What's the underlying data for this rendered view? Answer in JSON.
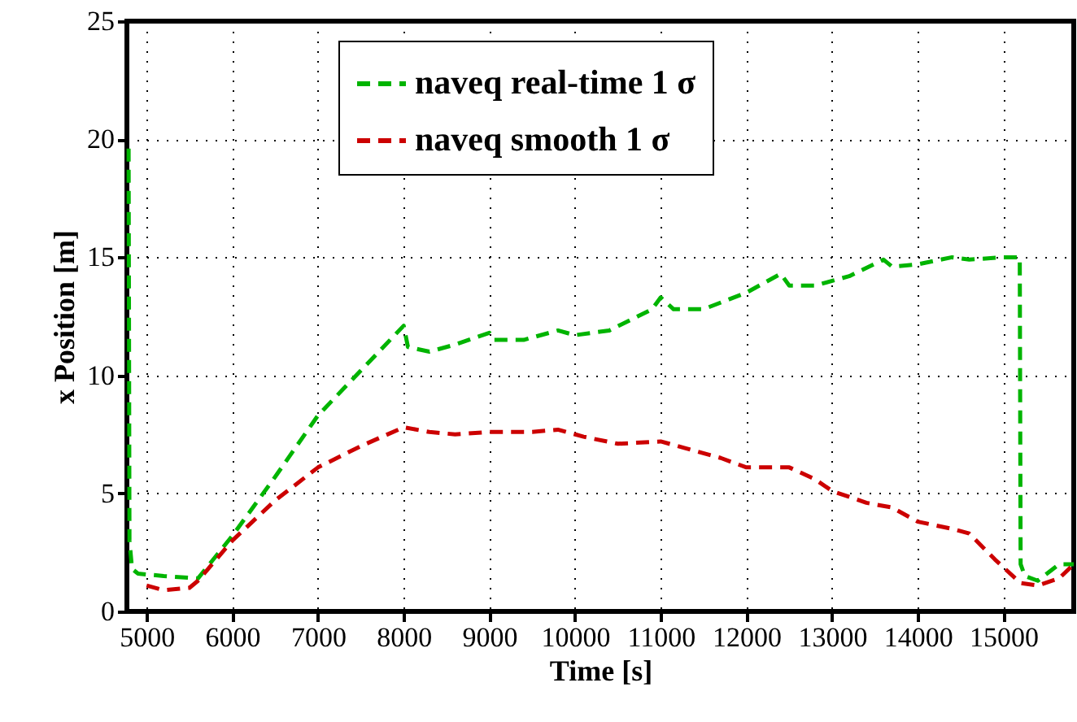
{
  "chart_data": {
    "type": "line",
    "xlabel": "Time [s]",
    "ylabel": "x Position [m]",
    "xlim": [
      4770,
      15820
    ],
    "ylim": [
      0,
      25
    ],
    "xticks": [
      5000,
      6000,
      7000,
      8000,
      9000,
      10000,
      11000,
      12000,
      13000,
      14000,
      15000
    ],
    "yticks": [
      0,
      5,
      10,
      15,
      20,
      25
    ],
    "grid": true,
    "legend": "top",
    "line_style": "dashed",
    "marker": "none",
    "series": [
      {
        "name": "naveq real-time 1 σ",
        "color": "#00b400",
        "x": [
          4790,
          4800,
          4830,
          4900,
          5200,
          5600,
          6000,
          6500,
          7000,
          7500,
          8000,
          8050,
          8300,
          8600,
          9000,
          9050,
          9400,
          9800,
          10000,
          10400,
          10900,
          11000,
          11150,
          11500,
          12000,
          12400,
          12500,
          12800,
          13200,
          13600,
          13700,
          14000,
          14400,
          14600,
          15000,
          15190,
          15200,
          15250,
          15400,
          15650,
          15820
        ],
        "values": [
          19.6,
          3,
          1.8,
          1.6,
          1.5,
          1.4,
          3.2,
          5.7,
          8.3,
          10.2,
          12.1,
          11.2,
          11.0,
          11.3,
          11.8,
          11.5,
          11.5,
          11.9,
          11.7,
          11.9,
          12.8,
          13.3,
          12.8,
          12.8,
          13.5,
          14.3,
          13.8,
          13.8,
          14.2,
          14.9,
          14.6,
          14.7,
          15.0,
          14.9,
          15.0,
          15.0,
          2.0,
          1.5,
          1.3,
          2.0,
          2.0
        ]
      },
      {
        "name": "naveq smooth 1 σ",
        "color": "#cc0000",
        "x": [
          5000,
          5200,
          5500,
          5600,
          6000,
          6500,
          7000,
          7500,
          8000,
          8300,
          8600,
          9000,
          9500,
          9800,
          10100,
          10500,
          11000,
          11300,
          11700,
          12000,
          12500,
          12800,
          13000,
          13400,
          13700,
          14000,
          14400,
          14600,
          14900,
          15200,
          15400,
          15650,
          15820
        ],
        "values": [
          1.1,
          0.9,
          1.0,
          1.3,
          3.0,
          4.7,
          6.1,
          7.0,
          7.8,
          7.6,
          7.5,
          7.6,
          7.6,
          7.7,
          7.4,
          7.1,
          7.2,
          6.9,
          6.5,
          6.1,
          6.1,
          5.6,
          5.1,
          4.6,
          4.4,
          3.8,
          3.5,
          3.3,
          2.2,
          1.2,
          1.1,
          1.4,
          2.0
        ]
      }
    ]
  }
}
